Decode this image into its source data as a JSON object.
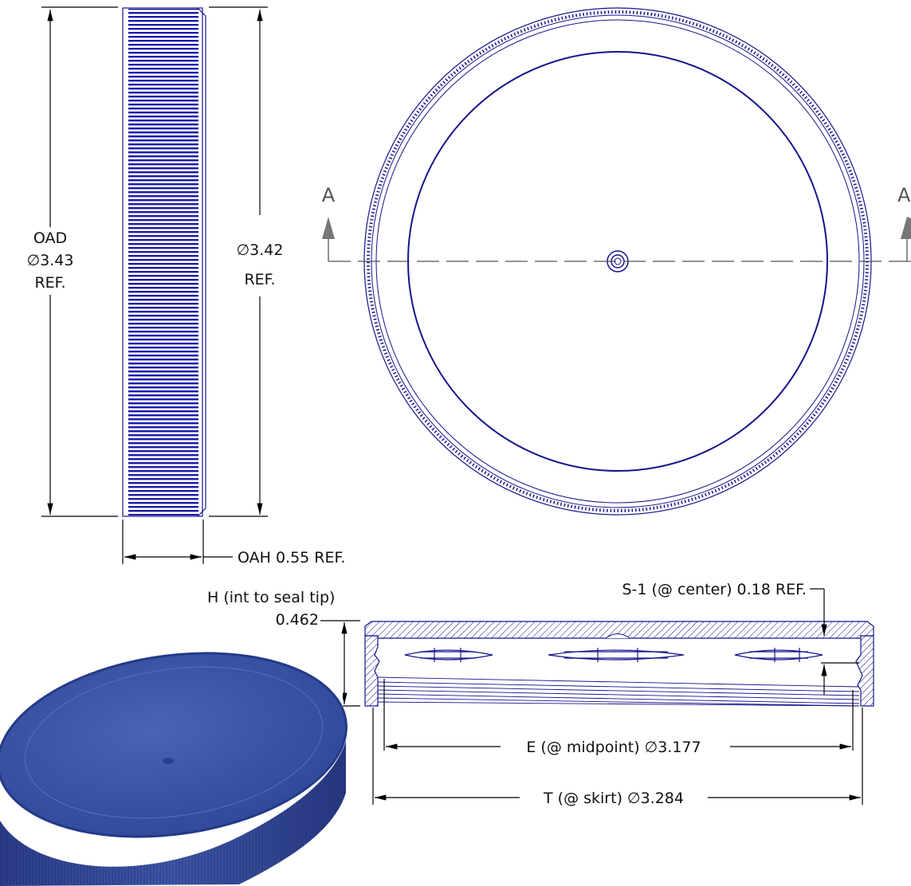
{
  "drawing": {
    "ink_color": "#14148c",
    "render_color": "#3d55a8",
    "side_view": {
      "oad_label": "OAD",
      "oad_value": "∅3.43",
      "oad_ref": "REF.",
      "dia_value": "∅3.42",
      "dia_ref": "REF.",
      "oah_label": "OAH 0.55 REF."
    },
    "top_view": {
      "section_left": "A",
      "section_right": "A"
    },
    "section_view": {
      "s1_label": "S-1 (@ center) 0.18 REF.",
      "h_label": "H (int to seal tip)",
      "h_value": "0.462",
      "e_label": "E (@ midpoint) ∅3.177",
      "t_label": "T (@ skirt) ∅3.284"
    },
    "iso_view": {
      "icon": "cap-3d-render-icon"
    }
  }
}
